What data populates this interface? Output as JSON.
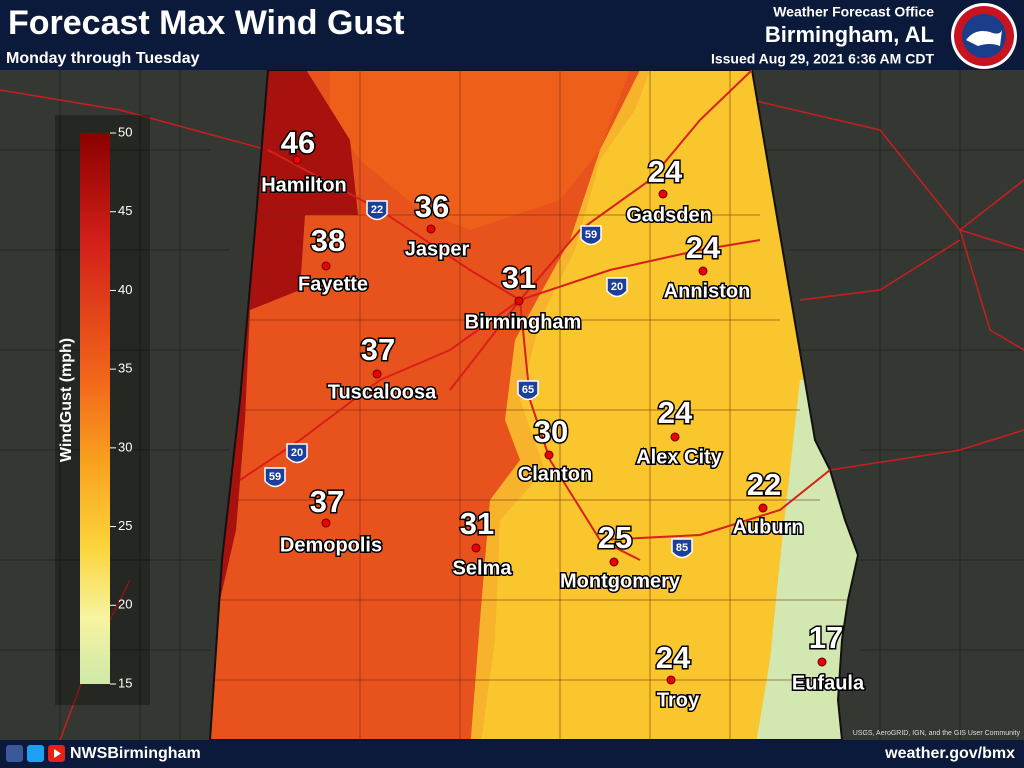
{
  "header": {
    "title": "Forecast Max Wind Gust",
    "subtitle": "Monday through Tuesday",
    "office": "Weather Forecast Office",
    "location": "Birmingham, AL",
    "issued": "Issued Aug 29, 2021 6:36 AM CDT"
  },
  "legend": {
    "title": "WindGust (mph)",
    "ticks": [
      50,
      45,
      40,
      35,
      30,
      25,
      20,
      15
    ]
  },
  "cities": [
    {
      "name": "Hamilton",
      "value": 46
    },
    {
      "name": "Jasper",
      "value": 36
    },
    {
      "name": "Fayette",
      "value": 38
    },
    {
      "name": "Birmingham",
      "value": 31
    },
    {
      "name": "Tuscaloosa",
      "value": 37
    },
    {
      "name": "Gadsden",
      "value": 24
    },
    {
      "name": "Anniston",
      "value": 24
    },
    {
      "name": "Alex City",
      "value": 24
    },
    {
      "name": "Clanton",
      "value": 30
    },
    {
      "name": "Auburn",
      "value": 22
    },
    {
      "name": "Demopolis",
      "value": 37
    },
    {
      "name": "Selma",
      "value": 31
    },
    {
      "name": "Montgomery",
      "value": 25
    },
    {
      "name": "Troy",
      "value": 24
    },
    {
      "name": "Eufaula",
      "value": 17
    }
  ],
  "interstates": [
    "22",
    "59",
    "20",
    "65",
    "20",
    "59",
    "85"
  ],
  "footer": {
    "handle": "NWSBirmingham",
    "website": "weather.gov/bmx",
    "attribution": "USGS, AeroGRID, IGN, and the GIS User Community"
  }
}
